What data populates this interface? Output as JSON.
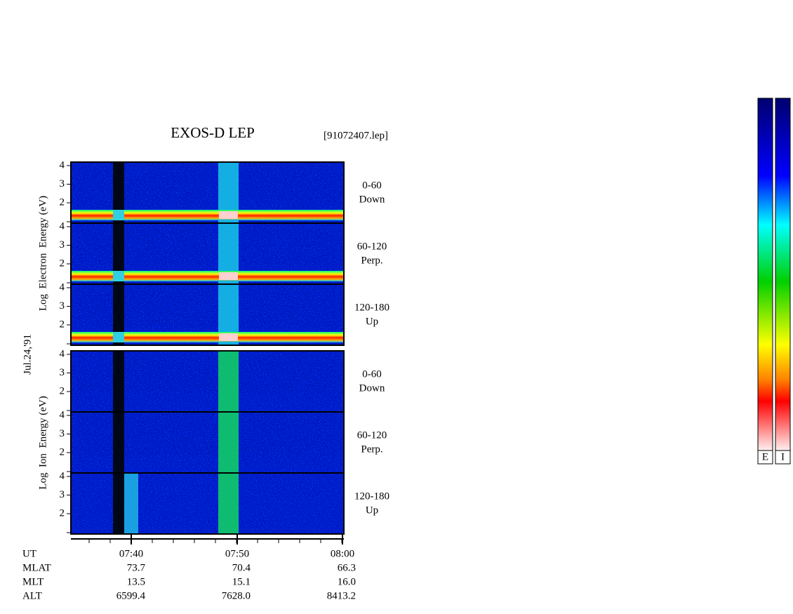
{
  "header": {
    "title": "EXOS-D LEP",
    "file": "[91072407.lep]",
    "date": "Jul.24,'91"
  },
  "electron": {
    "axis_label": "Log  Electron  Energy (eV)",
    "panels": [
      {
        "ticks": [
          4,
          3,
          2
        ],
        "range": "0-60",
        "direction": "Down"
      },
      {
        "ticks": [
          4,
          3,
          2
        ],
        "range": "60-120",
        "direction": "Perp."
      },
      {
        "ticks": [
          4,
          3,
          2
        ],
        "range": "120-180",
        "direction": "Up"
      }
    ]
  },
  "ion": {
    "axis_label": "Log  Ion  Energy (eV)",
    "panels": [
      {
        "ticks": [
          4,
          3,
          2
        ],
        "range": "0-60",
        "direction": "Down"
      },
      {
        "ticks": [
          4,
          3,
          2
        ],
        "range": "60-120",
        "direction": "Perp."
      },
      {
        "ticks": [
          4,
          3,
          2
        ],
        "range": "120-180",
        "direction": "Up"
      }
    ]
  },
  "time_axis": {
    "ticks": [
      "07:40",
      "07:50",
      "08:00"
    ]
  },
  "ephemeris": {
    "rows": [
      {
        "label": "UT"
      },
      {
        "label": "MLAT",
        "values": [
          "73.7",
          "70.4",
          "66.3"
        ]
      },
      {
        "label": "MLT",
        "values": [
          "13.5",
          "15.1",
          "16.0"
        ]
      },
      {
        "label": "ALT",
        "values": [
          "6599.4",
          "7628.0",
          "8413.2"
        ]
      }
    ]
  },
  "colorbars": [
    "E",
    "I"
  ]
}
